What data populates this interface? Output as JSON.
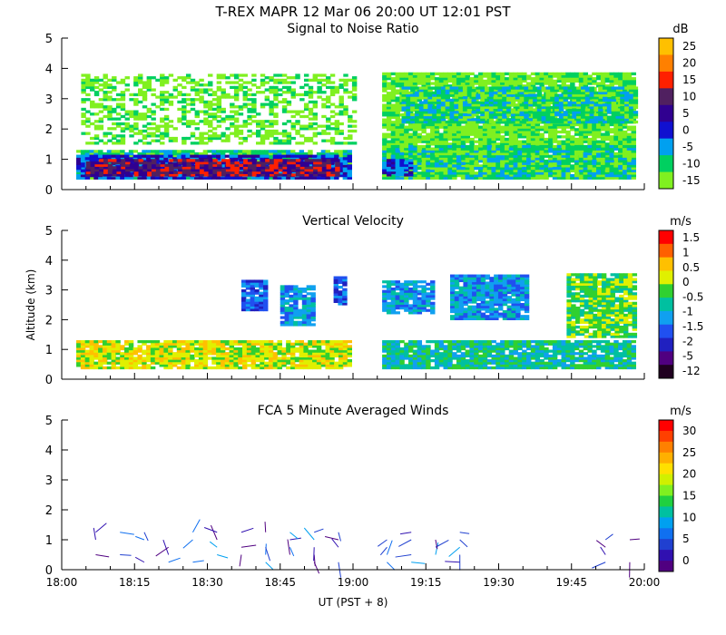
{
  "header": {
    "line1": "T-REX   MAPR 12 Mar 06   20:00 UT   12:01   PST"
  },
  "chart_data": [
    {
      "type": "heatmap",
      "title": "Signal to Noise Ratio",
      "xlabel": "UT  (PST + 8)",
      "ylabel": "",
      "xlim": [
        "18:00",
        "20:00"
      ],
      "ylim": [
        0,
        5
      ],
      "yticks": [
        "0",
        "1",
        "2",
        "3",
        "4",
        "5"
      ],
      "colorbar_unit": "dB",
      "colorbar_labels": [
        "25",
        "20",
        "15",
        "10",
        "5",
        "0",
        "-5",
        "-10",
        "-15"
      ],
      "colors": [
        "#FFC000",
        "#FF8000",
        "#FF2000",
        "#502060",
        "#300090",
        "#1010D0",
        "#00A0F0",
        "#00D060",
        "#80F020"
      ],
      "data_gap": [
        "18:59",
        "19:05"
      ],
      "regions": [
        {
          "x0": 3,
          "x1": 59,
          "y0": 0.35,
          "y1": 1.3,
          "level": -10
        },
        {
          "x0": 3,
          "x1": 59,
          "y0": 0.35,
          "y1": 1.15,
          "level": 0
        },
        {
          "x0": 5,
          "x1": 57,
          "y0": 0.45,
          "y1": 0.95,
          "level": 10
        },
        {
          "x0": 4,
          "x1": 60,
          "y0": 1.5,
          "y1": 3.8,
          "level": -15,
          "sparse": true
        },
        {
          "x0": 66,
          "x1": 118,
          "y0": 0.35,
          "y1": 3.8,
          "level": -15
        },
        {
          "x0": 70,
          "x1": 118,
          "y0": 2.2,
          "y1": 3.4,
          "level": -10
        },
        {
          "x0": 66,
          "x1": 118,
          "y0": 0.35,
          "y1": 1.4,
          "level": -10
        },
        {
          "x0": 66,
          "x1": 72,
          "y0": 0.45,
          "y1": 0.95,
          "level": 0
        }
      ]
    },
    {
      "type": "heatmap",
      "title": "Vertical Velocity",
      "ylabel": "Altitude  (km)",
      "xlim": [
        "18:00",
        "20:00"
      ],
      "ylim": [
        0,
        5
      ],
      "yticks": [
        "0",
        "1",
        "2",
        "3",
        "4",
        "5"
      ],
      "colorbar_unit": "m/s",
      "colorbar_labels": [
        "1.5",
        "1",
        "0.5",
        "0",
        "-0.5",
        "-1",
        "-1.5",
        "-2",
        "-5",
        "-12"
      ],
      "colors": [
        "#FF0000",
        "#FF6000",
        "#FFC000",
        "#E0F000",
        "#30D030",
        "#00C0A0",
        "#10A0F0",
        "#2050F0",
        "#2020C0",
        "#500080",
        "#200020"
      ],
      "data_gap": [
        "18:59",
        "19:05"
      ],
      "regions": [
        {
          "x0": 3,
          "x1": 59,
          "y0": 0.35,
          "y1": 1.3,
          "level": 0
        },
        {
          "x0": 66,
          "x1": 118,
          "y0": 0.35,
          "y1": 1.3,
          "level": -1
        },
        {
          "x0": 37,
          "x1": 42,
          "y0": 2.3,
          "y1": 3.3,
          "level": -2
        },
        {
          "x0": 45,
          "x1": 52,
          "y0": 1.8,
          "y1": 3.1,
          "level": -1.5
        },
        {
          "x0": 56,
          "x1": 58,
          "y0": 2.5,
          "y1": 3.4,
          "level": -2
        },
        {
          "x0": 66,
          "x1": 76,
          "y0": 2.2,
          "y1": 3.3,
          "level": -1.5
        },
        {
          "x0": 80,
          "x1": 96,
          "y0": 2.0,
          "y1": 3.5,
          "level": -1.5
        },
        {
          "x0": 104,
          "x1": 118,
          "y0": 1.4,
          "y1": 3.5,
          "level": -0.5
        }
      ]
    },
    {
      "type": "wind_barbs",
      "title": "FCA 5 Minute Averaged Winds",
      "xlim": [
        "18:00",
        "20:00"
      ],
      "ylim": [
        0,
        5
      ],
      "yticks": [
        "0",
        "1",
        "2",
        "3",
        "4",
        "5"
      ],
      "xticks": [
        "18:00",
        "18:15",
        "18:30",
        "18:45",
        "19:00",
        "19:15",
        "19:30",
        "19:45",
        "20:00"
      ],
      "colorbar_unit": "m/s",
      "colorbar_labels": [
        "30",
        "25",
        "20",
        "15",
        "10",
        "5",
        "0"
      ],
      "colors": [
        "#FF0000",
        "#FF4000",
        "#FF8000",
        "#FFB000",
        "#FFE000",
        "#D0F000",
        "#80F020",
        "#20D040",
        "#00C0A0",
        "#00A0F0",
        "#1070F0",
        "#2040D0",
        "#3010B0",
        "#500080"
      ],
      "times": [
        "18:07",
        "18:12",
        "18:17",
        "18:22",
        "18:27",
        "18:32",
        "18:37",
        "18:42",
        "18:47",
        "18:52",
        "18:57",
        "19:07",
        "19:12",
        "19:17",
        "19:22",
        "19:52",
        "19:57"
      ],
      "altitudes": [
        0.25,
        0.5,
        0.75,
        1.0,
        1.25
      ]
    }
  ]
}
